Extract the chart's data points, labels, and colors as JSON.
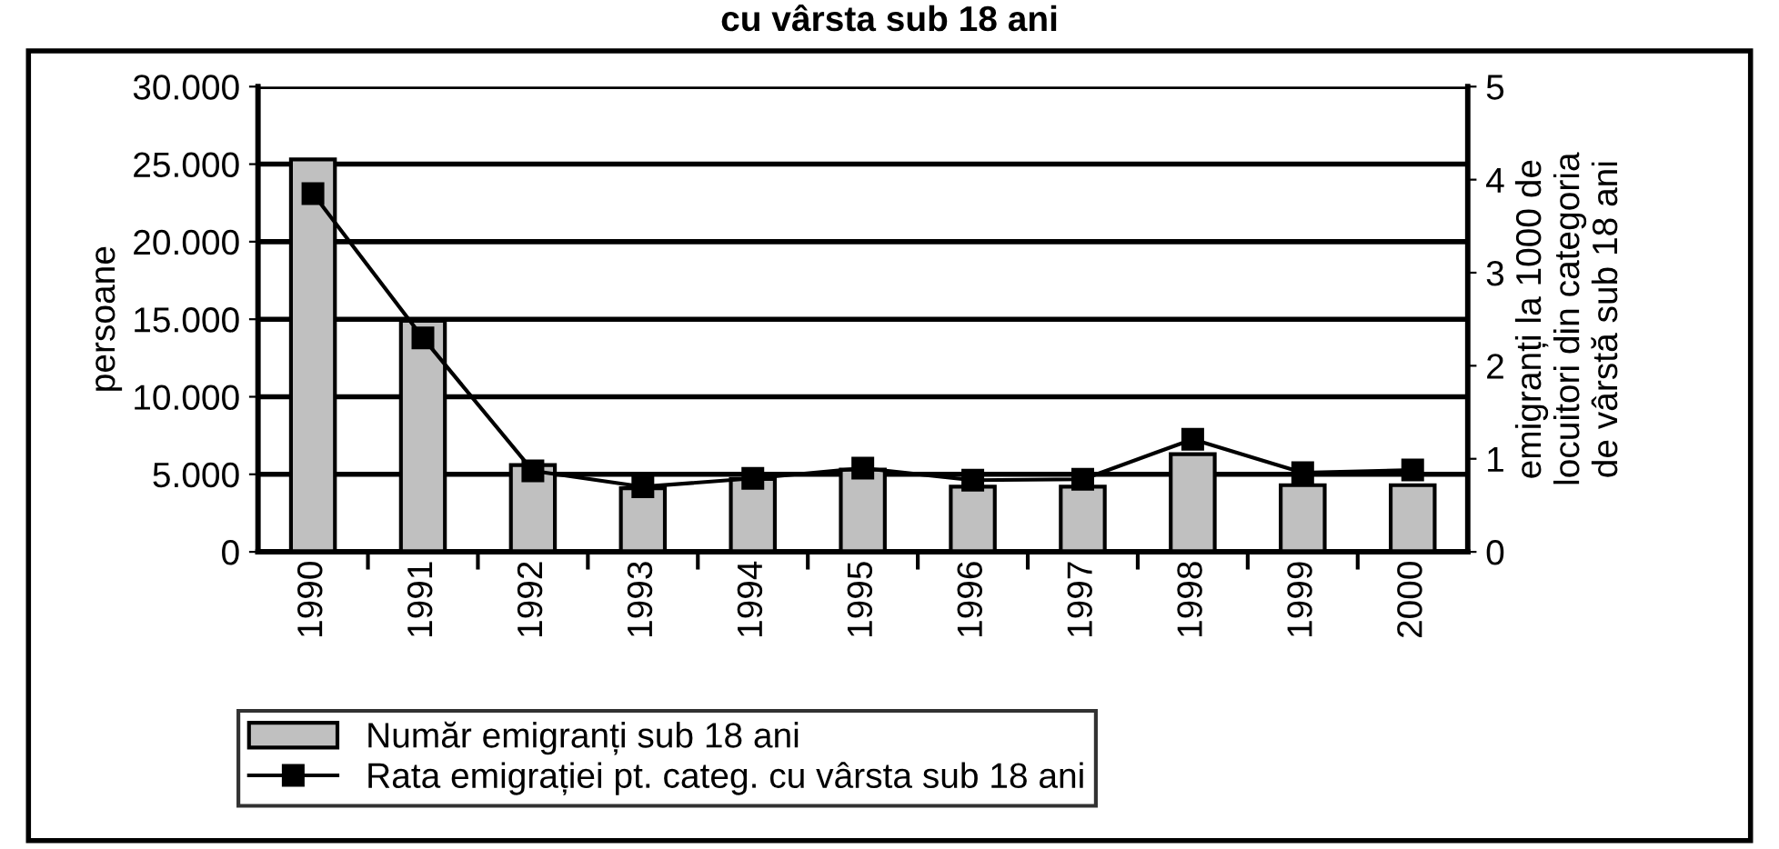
{
  "chart_data": {
    "type": "bar",
    "title": "cu vârsta sub 18 ani",
    "ylabel": "persoane",
    "y2label": "emigranți la 1000 de\nlocuitori din categoria\nde vârstă sub 18 ani",
    "categories": [
      "1990",
      "1991",
      "1992",
      "1993",
      "1994",
      "1995",
      "1996",
      "1997",
      "1998",
      "1999",
      "2000"
    ],
    "series": [
      {
        "name": "Număr emigranți sub 18 ani",
        "color": "#c0c0c0",
        "values": [
          25300,
          14900,
          5600,
          4100,
          4700,
          5300,
          4200,
          4200,
          6300,
          4300,
          4300
        ]
      },
      {
        "name": "Rata emigrației pt. categ. cu vârsta sub 18 ani",
        "type": "line",
        "axis": "y2",
        "color": "#000000",
        "marker": "square",
        "values": [
          3.85,
          2.3,
          0.87,
          0.7,
          0.79,
          0.9,
          0.77,
          0.78,
          1.21,
          0.85,
          0.88
        ]
      }
    ],
    "ylim": [
      0,
      30000
    ],
    "yticks": [
      {
        "value": 0,
        "label": "0"
      },
      {
        "value": 5000,
        "label": "5.000"
      },
      {
        "value": 10000,
        "label": "10.000"
      },
      {
        "value": 15000,
        "label": "15.000"
      },
      {
        "value": 20000,
        "label": "20.000"
      },
      {
        "value": 25000,
        "label": "25.000"
      },
      {
        "value": 30000,
        "label": "30.000"
      }
    ],
    "y2lim": [
      0,
      5
    ],
    "y2ticks": [
      0,
      1,
      2,
      3,
      4,
      5
    ],
    "grid": "y",
    "legend": "bottom"
  }
}
